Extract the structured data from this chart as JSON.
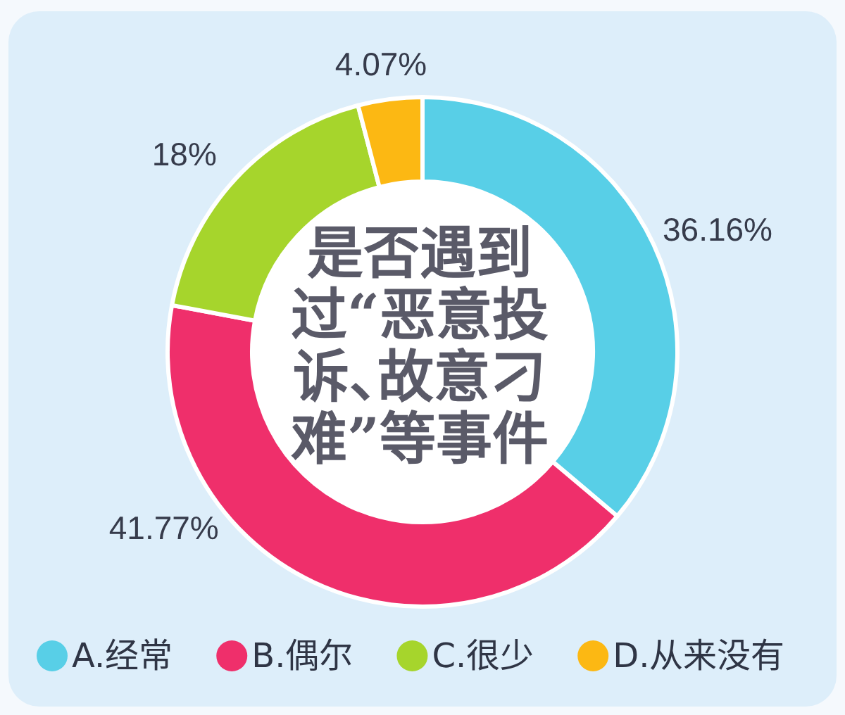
{
  "chart_data": {
    "type": "donut",
    "title": "是否遇到过“恶意投诉、故意刁难”等事件",
    "categories": [
      "A.经常",
      "B.偶尔",
      "C.很少",
      "D.从来没有"
    ],
    "values": [
      36.16,
      41.77,
      18,
      4.07
    ],
    "colors": [
      "#58cfe7",
      "#ef2f6b",
      "#a6d52c",
      "#fcb813"
    ],
    "value_labels": [
      "36.16%",
      "41.77%",
      "18%",
      "4.07%"
    ],
    "legend": "bottom"
  }
}
